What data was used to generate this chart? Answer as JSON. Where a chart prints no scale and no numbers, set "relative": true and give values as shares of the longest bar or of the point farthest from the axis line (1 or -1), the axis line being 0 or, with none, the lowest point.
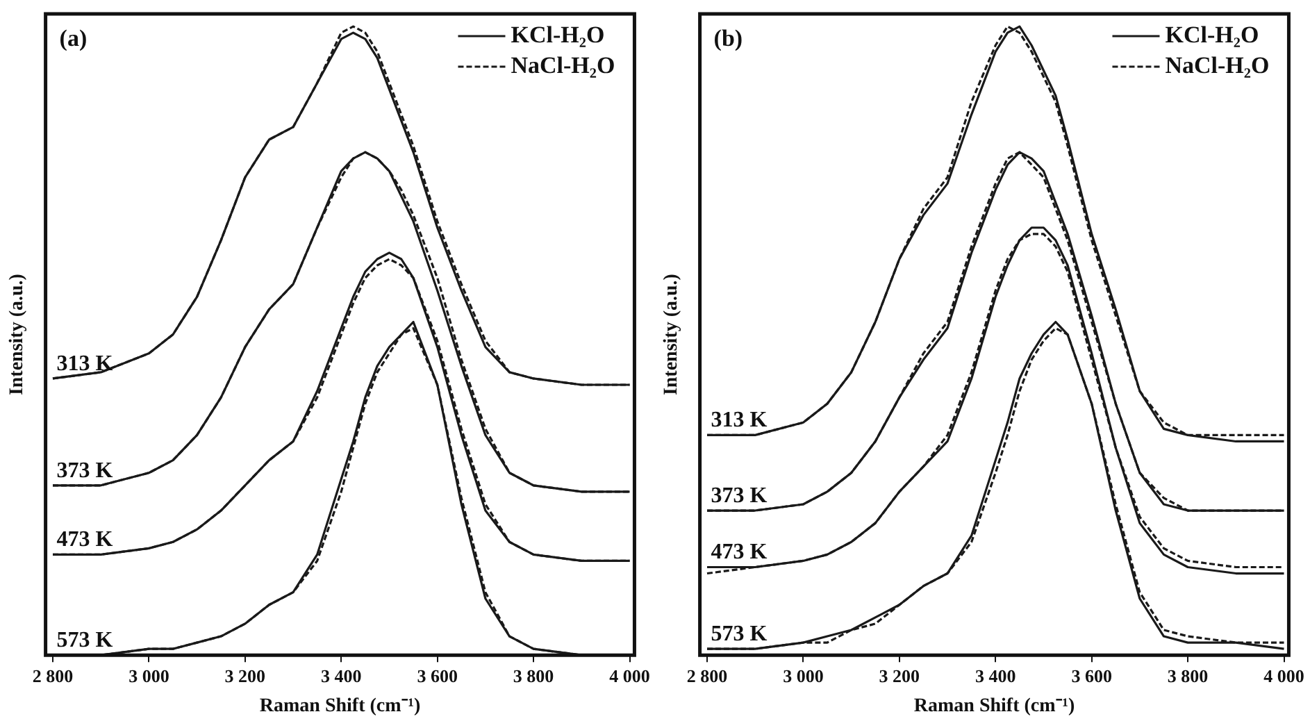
{
  "chart_data": [
    {
      "type": "line",
      "relative": true,
      "xlabel": "Raman Shift (cm⁻¹)",
      "ylabel": "Intensity (a.u.)",
      "xlim": [
        2785,
        4010
      ],
      "xticks": [
        {
          "value": 2800,
          "label": "2 800"
        },
        {
          "value": 3000,
          "label": "3 000"
        },
        {
          "value": 3200,
          "label": "3 200"
        },
        {
          "value": 3400,
          "label": "3 400"
        },
        {
          "value": 3600,
          "label": "3 600"
        },
        {
          "value": 3800,
          "label": "3 800"
        },
        {
          "value": 4000,
          "label": "4 000"
        }
      ],
      "legend": "top right",
      "tick_labels": "x",
      "annotations": [
        "(a)",
        {
          "text": "313 K",
          "y": 0.44
        },
        {
          "text": "373 K",
          "y": 0.27
        },
        {
          "text": "473 K",
          "y": 0.16
        },
        {
          "text": "573 K",
          "y": 0
        }
      ],
      "x": [
        2800,
        2900,
        3000,
        3050,
        3100,
        3150,
        3200,
        3250,
        3300,
        3350,
        3400,
        3425,
        3450,
        3475,
        3500,
        3525,
        3550,
        3600,
        3650,
        3700,
        3750,
        3800,
        3900,
        4000
      ],
      "series": [
        {
          "name": "KCl-H₂O",
          "color": "#1a1a1a",
          "line_style": "solid",
          "values": [
            0.44,
            0.45,
            0.48,
            0.51,
            0.57,
            0.66,
            0.76,
            0.82,
            0.84,
            0.91,
            0.98,
            0.99,
            0.98,
            0.95,
            0.9,
            0.85,
            0.8,
            0.68,
            0.58,
            0.49,
            0.45,
            0.44,
            0.43,
            0.43
          ]
        },
        {
          "name": "NaCl-H₂O",
          "color": "#1a1a1a",
          "line_style": "dashed",
          "values": [
            0.44,
            0.45,
            0.48,
            0.51,
            0.57,
            0.66,
            0.76,
            0.82,
            0.84,
            0.91,
            0.99,
            1.0,
            0.99,
            0.96,
            0.91,
            0.86,
            0.81,
            0.69,
            0.59,
            0.5,
            0.45,
            0.44,
            0.43,
            0.43
          ]
        },
        {
          "color": "#1a1a1a",
          "line_style": "solid",
          "values": [
            0.27,
            0.27,
            0.29,
            0.31,
            0.35,
            0.41,
            0.49,
            0.55,
            0.59,
            0.68,
            0.77,
            0.79,
            0.8,
            0.79,
            0.77,
            0.73,
            0.69,
            0.58,
            0.46,
            0.35,
            0.29,
            0.27,
            0.26,
            0.26
          ]
        },
        {
          "color": "#1a1a1a",
          "line_style": "dashed",
          "values": [
            0.27,
            0.27,
            0.29,
            0.31,
            0.35,
            0.41,
            0.49,
            0.55,
            0.59,
            0.68,
            0.76,
            0.79,
            0.8,
            0.79,
            0.77,
            0.74,
            0.7,
            0.6,
            0.47,
            0.36,
            0.29,
            0.27,
            0.26,
            0.26
          ]
        },
        {
          "color": "#1a1a1a",
          "line_style": "solid",
          "values": [
            0.16,
            0.16,
            0.17,
            0.18,
            0.2,
            0.23,
            0.27,
            0.31,
            0.34,
            0.42,
            0.52,
            0.57,
            0.61,
            0.63,
            0.64,
            0.63,
            0.6,
            0.49,
            0.35,
            0.23,
            0.18,
            0.16,
            0.15,
            0.15
          ]
        },
        {
          "color": "#1a1a1a",
          "line_style": "dashed",
          "values": [
            0.16,
            0.16,
            0.17,
            0.18,
            0.2,
            0.23,
            0.27,
            0.31,
            0.34,
            0.41,
            0.51,
            0.56,
            0.6,
            0.62,
            0.63,
            0.62,
            0.6,
            0.5,
            0.36,
            0.24,
            0.18,
            0.16,
            0.15,
            0.15
          ]
        },
        {
          "color": "#1a1a1a",
          "line_style": "solid",
          "values": [
            0,
            0,
            0.01,
            0.01,
            0.02,
            0.03,
            0.05,
            0.08,
            0.1,
            0.16,
            0.28,
            0.34,
            0.41,
            0.46,
            0.49,
            0.51,
            0.53,
            0.43,
            0.24,
            0.09,
            0.03,
            0.01,
            0,
            0
          ]
        },
        {
          "color": "#1a1a1a",
          "line_style": "dashed",
          "values": [
            0,
            0,
            0.01,
            0.01,
            0.02,
            0.03,
            0.05,
            0.08,
            0.1,
            0.15,
            0.26,
            0.33,
            0.4,
            0.45,
            0.48,
            0.51,
            0.52,
            0.43,
            0.25,
            0.1,
            0.03,
            0.01,
            0,
            0
          ]
        }
      ]
    },
    {
      "type": "line",
      "relative": true,
      "xlabel": "Raman Shift (cm⁻¹)",
      "ylabel": "Intensity (a.u.)",
      "xlim": [
        2785,
        4010
      ],
      "xticks": [
        {
          "value": 2800,
          "label": "2 800"
        },
        {
          "value": 3000,
          "label": "3 000"
        },
        {
          "value": 3200,
          "label": "3 200"
        },
        {
          "value": 3400,
          "label": "3 400"
        },
        {
          "value": 3600,
          "label": "3 600"
        },
        {
          "value": 3800,
          "label": "3 800"
        },
        {
          "value": 4000,
          "label": "4 000"
        }
      ],
      "legend": "top right",
      "tick_labels": "x",
      "annotations": [
        "(b)",
        {
          "text": "313 K",
          "y": 0.35
        },
        {
          "text": "373 K",
          "y": 0.23
        },
        {
          "text": "473 K",
          "y": 0.14
        },
        {
          "text": "573 K",
          "y": 0.01
        }
      ],
      "x": [
        2800,
        2900,
        3000,
        3050,
        3100,
        3150,
        3200,
        3250,
        3300,
        3350,
        3400,
        3425,
        3450,
        3475,
        3500,
        3525,
        3550,
        3600,
        3650,
        3700,
        3750,
        3800,
        3900,
        4000
      ],
      "series": [
        {
          "name": "KCl-H₂O",
          "color": "#1a1a1a",
          "line_style": "solid",
          "values": [
            0.35,
            0.35,
            0.37,
            0.4,
            0.45,
            0.53,
            0.63,
            0.7,
            0.75,
            0.86,
            0.96,
            0.99,
            1.0,
            0.97,
            0.93,
            0.89,
            0.82,
            0.67,
            0.55,
            0.42,
            0.36,
            0.35,
            0.34,
            0.34
          ]
        },
        {
          "name": "NaCl-H₂O",
          "color": "#1a1a1a",
          "line_style": "dashed",
          "values": [
            0.35,
            0.35,
            0.37,
            0.4,
            0.45,
            0.53,
            0.63,
            0.71,
            0.76,
            0.88,
            0.97,
            1.0,
            0.99,
            0.96,
            0.92,
            0.88,
            0.81,
            0.66,
            0.54,
            0.42,
            0.37,
            0.35,
            0.35,
            0.35
          ]
        },
        {
          "color": "#1a1a1a",
          "line_style": "solid",
          "values": [
            0.23,
            0.23,
            0.24,
            0.26,
            0.29,
            0.34,
            0.41,
            0.47,
            0.52,
            0.64,
            0.74,
            0.78,
            0.8,
            0.79,
            0.77,
            0.72,
            0.67,
            0.54,
            0.4,
            0.29,
            0.24,
            0.23,
            0.23,
            0.23
          ]
        },
        {
          "color": "#1a1a1a",
          "line_style": "dashed",
          "values": [
            0.23,
            0.23,
            0.24,
            0.26,
            0.29,
            0.34,
            0.41,
            0.48,
            0.53,
            0.65,
            0.75,
            0.79,
            0.8,
            0.78,
            0.76,
            0.71,
            0.66,
            0.53,
            0.4,
            0.29,
            0.25,
            0.23,
            0.23,
            0.23
          ]
        },
        {
          "color": "#1a1a1a",
          "line_style": "solid",
          "values": [
            0.14,
            0.14,
            0.15,
            0.16,
            0.18,
            0.21,
            0.26,
            0.3,
            0.34,
            0.44,
            0.57,
            0.62,
            0.66,
            0.68,
            0.68,
            0.66,
            0.62,
            0.48,
            0.33,
            0.21,
            0.16,
            0.14,
            0.13,
            0.13
          ]
        },
        {
          "color": "#1a1a1a",
          "line_style": "dashed",
          "values": [
            0.13,
            0.14,
            0.15,
            0.16,
            0.18,
            0.21,
            0.26,
            0.3,
            0.35,
            0.45,
            0.58,
            0.63,
            0.66,
            0.67,
            0.67,
            0.65,
            0.61,
            0.47,
            0.33,
            0.22,
            0.17,
            0.15,
            0.14,
            0.14
          ]
        },
        {
          "color": "#1a1a1a",
          "line_style": "solid",
          "values": [
            0.01,
            0.01,
            0.02,
            0.03,
            0.04,
            0.06,
            0.08,
            0.11,
            0.13,
            0.19,
            0.31,
            0.37,
            0.44,
            0.48,
            0.51,
            0.53,
            0.51,
            0.4,
            0.23,
            0.09,
            0.03,
            0.02,
            0.02,
            0.01
          ]
        },
        {
          "color": "#1a1a1a",
          "line_style": "dashed",
          "values": [
            0.01,
            0.01,
            0.02,
            0.02,
            0.04,
            0.05,
            0.08,
            0.11,
            0.13,
            0.18,
            0.29,
            0.35,
            0.42,
            0.47,
            0.5,
            0.52,
            0.51,
            0.4,
            0.24,
            0.1,
            0.04,
            0.03,
            0.02,
            0.02
          ]
        }
      ]
    }
  ]
}
